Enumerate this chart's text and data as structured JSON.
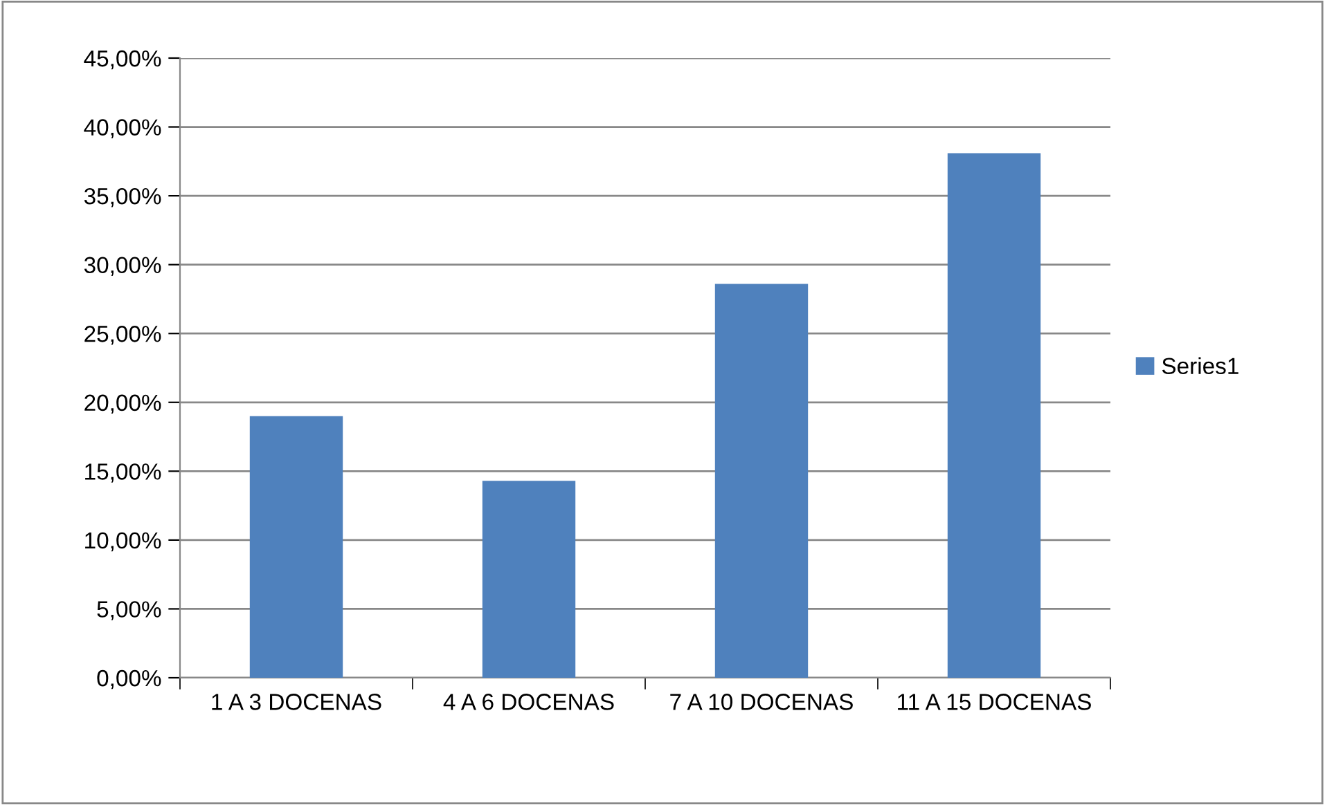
{
  "chart_data": {
    "type": "bar",
    "categories": [
      "1 A 3 DOCENAS",
      "4 A 6 DOCENAS",
      "7 A 10 DOCENAS",
      "11 A 15 DOCENAS"
    ],
    "series": [
      {
        "name": "Series1",
        "color": "#4f81bd",
        "values": [
          19.0,
          14.3,
          28.6,
          38.1
        ]
      }
    ],
    "ylim": [
      0,
      45
    ],
    "yticks": [
      {
        "value": 0,
        "label": "0,00%"
      },
      {
        "value": 5,
        "label": "5,00%"
      },
      {
        "value": 10,
        "label": "10,00%"
      },
      {
        "value": 15,
        "label": "15,00%"
      },
      {
        "value": 20,
        "label": "20,00%"
      },
      {
        "value": 25,
        "label": "25,00%"
      },
      {
        "value": 30,
        "label": "30,00%"
      },
      {
        "value": 35,
        "label": "35,00%"
      },
      {
        "value": 40,
        "label": "40,00%"
      },
      {
        "value": 45,
        "label": "45,00%"
      }
    ],
    "grid": "y",
    "legend": "right"
  }
}
